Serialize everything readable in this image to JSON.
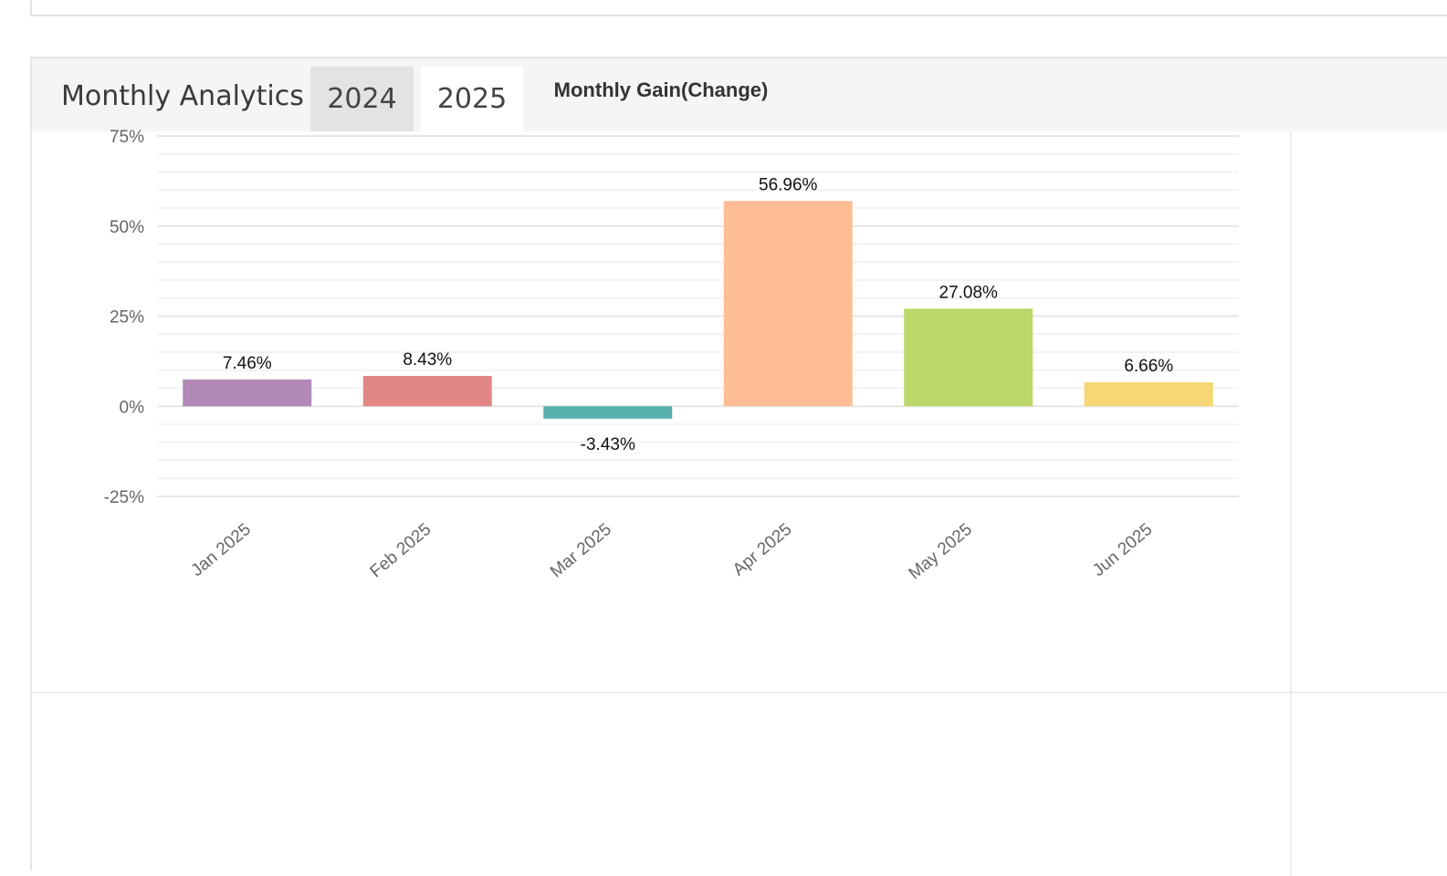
{
  "panel": {
    "title": "Monthly Analytics",
    "tabs": [
      {
        "label": "2024",
        "active": false
      },
      {
        "label": "2025",
        "active": true
      }
    ]
  },
  "chart_data": {
    "type": "bar",
    "title": "Monthly Gain(Change)",
    "xlabel": "",
    "ylabel": "",
    "categories": [
      "Jan 2025",
      "Feb 2025",
      "Mar 2025",
      "Apr 2025",
      "May 2025",
      "Jun 2025"
    ],
    "values": [
      7.46,
      8.43,
      -3.43,
      56.96,
      27.08,
      6.66
    ],
    "data_labels": [
      "7.46%",
      "8.43%",
      "-3.43%",
      "56.96%",
      "27.08%",
      "6.66%"
    ],
    "colors": [
      "#b389b7",
      "#e18785",
      "#57b0ae",
      "#ffbd94",
      "#bcd76b",
      "#f7d774"
    ],
    "ylim": [
      -25,
      75
    ],
    "y_ticks": [
      75,
      50,
      25,
      0,
      -25
    ],
    "y_tick_labels": [
      "75%",
      "50%",
      "25%",
      "0%",
      "-25%"
    ],
    "grid": true,
    "legend": "none"
  }
}
